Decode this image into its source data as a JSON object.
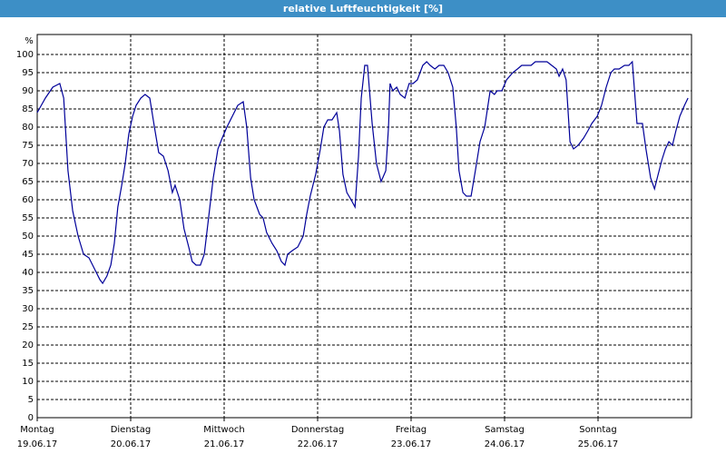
{
  "chart_data": {
    "type": "line",
    "title": "relative Luftfeuchtigkeit [%]",
    "ylabel": "%",
    "xlim": [
      0,
      168
    ],
    "ylim": [
      0,
      100
    ],
    "yticks": [
      0,
      5,
      10,
      15,
      20,
      25,
      30,
      35,
      40,
      45,
      50,
      55,
      60,
      65,
      70,
      75,
      80,
      85,
      90,
      95,
      100
    ],
    "xticks": [
      {
        "value": 0,
        "label": "Montag",
        "date": "19.06.17"
      },
      {
        "value": 24,
        "label": "Dienstag",
        "date": "20.06.17"
      },
      {
        "value": 48,
        "label": "Mittwoch",
        "date": "21.06.17"
      },
      {
        "value": 72,
        "label": "Donnerstag",
        "date": "22.06.17"
      },
      {
        "value": 96,
        "label": "Freitag",
        "date": "23.06.17"
      },
      {
        "value": 120,
        "label": "Samstag",
        "date": "24.06.17"
      },
      {
        "value": 144,
        "label": "Sonntag",
        "date": "25.06.17"
      }
    ],
    "grid": true,
    "x": [
      0,
      2.1,
      4.0,
      5.8,
      6.8,
      7.9,
      9.1,
      10.5,
      11.9,
      13.3,
      14.7,
      16.1,
      16.8,
      17.9,
      18.9,
      19.8,
      20.7,
      21.7,
      22.6,
      23.5,
      24.5,
      25.4,
      26.6,
      27.7,
      28.9,
      30.1,
      31.2,
      32.4,
      33.6,
      34.7,
      35.4,
      36.6,
      37.7,
      38.9,
      39.8,
      40.8,
      41.9,
      42.9,
      44.0,
      45.2,
      46.4,
      47.5,
      48.7,
      50.1,
      51.5,
      52.9,
      53.8,
      54.8,
      55.7,
      57.1,
      58.0,
      58.9,
      60.3,
      61.5,
      62.7,
      63.6,
      64.3,
      65.5,
      66.9,
      68.3,
      69.2,
      70.1,
      71.5,
      72.7,
      73.6,
      74.6,
      75.7,
      76.9,
      77.6,
      78.5,
      79.5,
      80.6,
      81.6,
      82.5,
      83.2,
      84.1,
      84.8,
      86.0,
      87.1,
      88.3,
      89.5,
      90.2,
      90.6,
      91.3,
      92.3,
      93.2,
      94.4,
      95.5,
      96.5,
      97.6,
      99.0,
      100.0,
      100.9,
      102.1,
      103.2,
      104.4,
      105.5,
      106.7,
      107.6,
      108.3,
      109.3,
      110.2,
      111.4,
      112.5,
      113.7,
      114.9,
      116.3,
      117.4,
      118.1,
      119.3,
      120.5,
      122.1,
      123.3,
      124.4,
      125.6,
      126.8,
      127.9,
      129.3,
      130.9,
      132.1,
      133.3,
      134.0,
      134.9,
      135.8,
      136.8,
      137.7,
      138.9,
      140.3,
      141.4,
      142.4,
      143.8,
      144.9,
      146.1,
      147.3,
      148.2,
      149.4,
      150.8,
      151.9,
      152.8,
      154.0,
      155.4,
      156.3,
      157.5,
      158.5,
      159.2,
      160.4,
      161.3,
      162.2,
      163.1,
      164.0,
      165.0,
      166.2,
      167.1
    ],
    "series": [
      {
        "name": "relative Luftfeuchtigkeit",
        "color": "#000099",
        "values": [
          84,
          88,
          91,
          92,
          88,
          68,
          57,
          50,
          45,
          44,
          41,
          38,
          37,
          39,
          42,
          48,
          58,
          64,
          70,
          78,
          83,
          86,
          88,
          89,
          88,
          80,
          73,
          72,
          68,
          62,
          64,
          60,
          52,
          47,
          43,
          42,
          42,
          45,
          55,
          66,
          74,
          77,
          80,
          83,
          86,
          87,
          80,
          66,
          60,
          56,
          55,
          51,
          48,
          46,
          43,
          42,
          45,
          46,
          47,
          50,
          56,
          61,
          67,
          74,
          80,
          82,
          82,
          84,
          79,
          67,
          62,
          60,
          58,
          72,
          88,
          97,
          97,
          81,
          70,
          65,
          68,
          80,
          92,
          90,
          91,
          89,
          88,
          92,
          92,
          93,
          97,
          98,
          97,
          96,
          97,
          97,
          95,
          91,
          80,
          68,
          62,
          61,
          61,
          68,
          76,
          80,
          90,
          89,
          90,
          90,
          93,
          95,
          96,
          97,
          97,
          97,
          98,
          98,
          98,
          97,
          96,
          94,
          96,
          93,
          76,
          74,
          75,
          77,
          79,
          81,
          83,
          86,
          91,
          95,
          96,
          96,
          97,
          97,
          98,
          81,
          81,
          74,
          66,
          63,
          66,
          71,
          74,
          76,
          75,
          79,
          83,
          86,
          88
        ]
      }
    ]
  }
}
